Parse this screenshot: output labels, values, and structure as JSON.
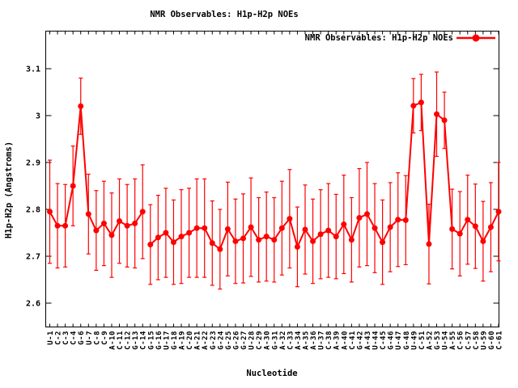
{
  "title": "NMR Observables: H1p-H2p NOEs",
  "legend": {
    "label": "NMR Observables: H1p-H2p NOEs",
    "position": "top-right-inside"
  },
  "axes": {
    "x_label": "Nucleotide",
    "y_label": "H1p-H2p (Angstroms)",
    "y_tick_labels": [
      "3.1",
      "3",
      "2.9",
      "2.8",
      "2.7",
      "2.6"
    ]
  },
  "colors": {
    "series": "#ff0000",
    "text": "#000000",
    "background": "#ffffff",
    "frame": "#000000"
  },
  "chart_data": {
    "type": "line",
    "title": "NMR Observables: H1p-H2p NOEs",
    "xlabel": "Nucleotide",
    "ylabel": "H1p-H2p (Angstroms)",
    "legend_entry": "NMR Observables: H1p-H2p NOEs",
    "grid": false,
    "error_bars": true,
    "marker": "filled-circle",
    "ylim": [
      2.55,
      3.18
    ],
    "y_tick_values": [
      2.6,
      2.7,
      2.8,
      2.9,
      3.0,
      3.1
    ],
    "gap_after_index": 12,
    "categories": [
      "U-1",
      "C-2",
      "C-3",
      "C-4",
      "G-6",
      "U-7",
      "C-8",
      "C-9",
      "A-10",
      "C-11",
      "C-12",
      "G-13",
      "C-14",
      "G-15",
      "G-16",
      "U-17",
      "G-18",
      "A-19",
      "C-20",
      "A-21",
      "A-22",
      "G-23",
      "G-24",
      "G-25",
      "G-26",
      "G-27",
      "U-28",
      "C-29",
      "A-30",
      "G-31",
      "A-32",
      "C-33",
      "A-34",
      "A-35",
      "A-36",
      "U-37",
      "C-38",
      "A-39",
      "A-40",
      "C-41",
      "G-42",
      "A-43",
      "U-44",
      "C-45",
      "G-46",
      "U-47",
      "G-48",
      "U-49",
      "C-51",
      "A-52",
      "G-53",
      "U-54",
      "A-55",
      "C-56",
      "C-57",
      "C-58",
      "U-59",
      "G-60",
      "C-61"
    ],
    "values": [
      2.795,
      2.765,
      2.765,
      2.85,
      3.02,
      2.79,
      2.755,
      2.77,
      2.745,
      2.775,
      2.765,
      2.77,
      2.795,
      2.725,
      2.74,
      2.75,
      2.73,
      2.742,
      2.75,
      2.76,
      2.76,
      2.728,
      2.715,
      2.758,
      2.732,
      2.738,
      2.762,
      2.735,
      2.742,
      2.735,
      2.76,
      2.78,
      2.72,
      2.757,
      2.732,
      2.747,
      2.755,
      2.742,
      2.768,
      2.735,
      2.782,
      2.79,
      2.76,
      2.73,
      2.762,
      2.778,
      2.777,
      3.021,
      3.028,
      2.726,
      3.003,
      2.99,
      2.758,
      2.748,
      2.778,
      2.764,
      2.732,
      2.762,
      2.795
    ],
    "errors": [
      0.11,
      0.09,
      0.088,
      0.085,
      0.06,
      0.085,
      0.085,
      0.09,
      0.09,
      0.09,
      0.088,
      0.095,
      0.1,
      0.085,
      0.09,
      0.095,
      0.09,
      0.1,
      0.095,
      0.105,
      0.105,
      0.09,
      0.085,
      0.1,
      0.09,
      0.095,
      0.105,
      0.09,
      0.095,
      0.09,
      0.1,
      0.105,
      0.085,
      0.095,
      0.09,
      0.095,
      0.1,
      0.09,
      0.105,
      0.09,
      0.105,
      0.11,
      0.095,
      0.09,
      0.095,
      0.1,
      0.095,
      0.058,
      0.06,
      0.085,
      0.09,
      0.06,
      0.085,
      0.09,
      0.095,
      0.09,
      0.085,
      0.095,
      0.105
    ]
  }
}
